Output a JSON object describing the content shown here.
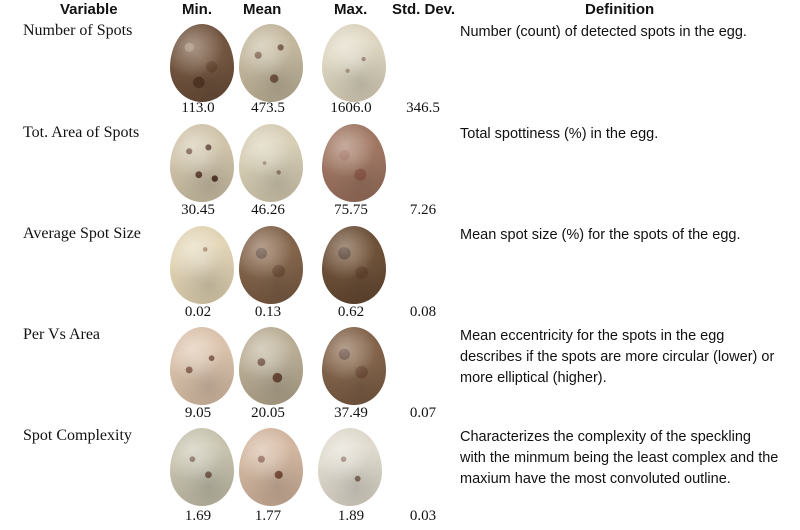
{
  "headers": {
    "variable": "Variable",
    "min": "Min.",
    "mean": "Mean",
    "max": "Max.",
    "std": "Std. Dev.",
    "definition": "Definition"
  },
  "rows": [
    {
      "name": "Number of Spots",
      "min": "113.0",
      "mean": "473.5",
      "max": "1606.0",
      "std": "346.5",
      "definition": "Number (count) of detected spots in the egg."
    },
    {
      "name": "Tot. Area of Spots",
      "min": "30.45",
      "mean": "46.26",
      "max": "75.75",
      "std": "7.26",
      "definition": "Total spottiness (%) in the egg."
    },
    {
      "name": "Average Spot Size",
      "min": "0.02",
      "mean": "0.13",
      "max": "0.62",
      "std": "0.08",
      "definition": "Mean spot size (%) for the spots of the egg."
    },
    {
      "name": "Per Vs Area",
      "min": "9.05",
      "mean": "20.05",
      "max": "37.49",
      "std": "0.07",
      "definition": "Mean eccentricity for the spots in the egg describes if the spots are more circular (lower) or more elliptical (higher)."
    },
    {
      "name": "Spot Complexity",
      "min": "1.69",
      "mean": "1.77",
      "max": "1.89",
      "std": "0.03",
      "definition": "Characterizes the complexity of the speckling with the minmum being the least complex and the maxium have the most convoluted outline."
    }
  ]
}
